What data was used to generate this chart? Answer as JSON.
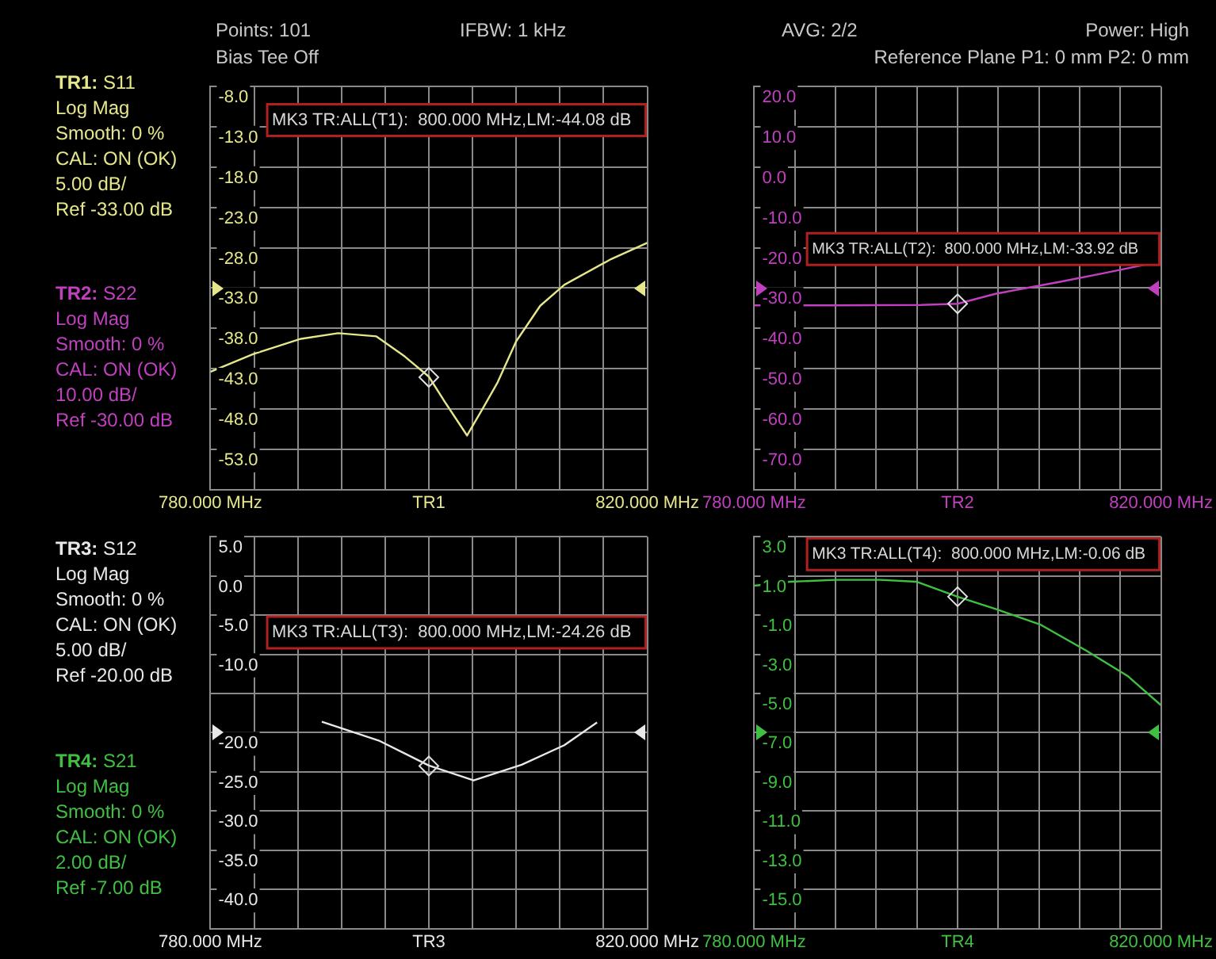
{
  "chart_data": [
    {
      "type": "other",
      "annotations": [
        "Points: 101",
        "IFBW: 1 kHz",
        "AVG: 2/2",
        "Power: High",
        "Bias Tee Off",
        "Reference Plane P1: 0 mm P2: 0 mm"
      ]
    },
    {
      "type": "other",
      "annotations": [
        "TR1: S11",
        "Log Mag",
        "Smooth: 0 %",
        "CAL: ON (OK)",
        "5.00 dB/",
        "Ref -33.00 dB",
        "TR2: S22",
        "Log Mag",
        "Smooth: 0 %",
        "CAL: ON (OK)",
        "10.00 dB/",
        "Ref -30.00 dB"
      ]
    },
    {
      "type": "line",
      "annotations": [
        "MK3 TR:ALL(T1):  800.000 MHz,LM:-44.08 dB"
      ],
      "series": [
        {
          "type": "scatter",
          "color": "#e0e0e0",
          "marker": "diamond",
          "x": [
            800
          ],
          "values": [
            -44.08
          ]
        },
        {
          "color": "#e6e68c",
          "x": [
            780,
            783.9,
            788.3,
            791.7,
            795.2,
            797.8,
            800,
            801.5,
            803.5,
            805,
            806.3,
            808,
            810.2,
            812.4,
            816.7,
            820
          ],
          "values": [
            -43.4,
            -41.2,
            -39.3,
            -38.6,
            -39.0,
            -41.5,
            -44.0,
            -47.2,
            -51.3,
            -47.8,
            -44.7,
            -39.6,
            -35.2,
            -32.6,
            -29.4,
            -27.4
          ]
        }
      ],
      "xlim": [
        780,
        820
      ],
      "xticks": [
        {
          "value": 780,
          "label": "780.000 MHz"
        },
        {
          "value": 784,
          "label": null
        },
        {
          "value": 788,
          "label": null
        },
        {
          "value": 792,
          "label": null
        },
        {
          "value": 796,
          "label": null
        },
        {
          "value": 800,
          "label": "TR1"
        },
        {
          "value": 804,
          "label": null
        },
        {
          "value": 808,
          "label": null
        },
        {
          "value": 812,
          "label": null
        },
        {
          "value": 816,
          "label": null
        },
        {
          "value": 820,
          "label": "820.000 MHz"
        }
      ],
      "ylim": [
        -58,
        -8
      ],
      "yticks": [
        {
          "value": -8,
          "label": "-8.0"
        },
        {
          "value": -13,
          "label": "-13.0"
        },
        {
          "value": -18,
          "label": "-18.0"
        },
        {
          "value": -23,
          "label": "-23.0"
        },
        {
          "value": -28,
          "label": "-28.0"
        },
        {
          "value": -33,
          "label": "-33.0"
        },
        {
          "value": -38,
          "label": "-38.0"
        },
        {
          "value": -43,
          "label": "-43.0"
        },
        {
          "value": -48,
          "label": "-48.0"
        },
        {
          "value": -53,
          "label": "-53.0"
        },
        {
          "value": -58,
          "label": null
        }
      ],
      "grid": true,
      "marker": "none"
    },
    {
      "type": "line",
      "annotations": [
        "MK3 TR:ALL(T2):  800.000 MHz,LM:-33.92 dB"
      ],
      "series": [
        {
          "type": "scatter",
          "color": "#e0e0e0",
          "marker": "diamond",
          "x": [
            800
          ],
          "values": [
            -33.92
          ]
        },
        {
          "color": "#c040c0",
          "x": [
            780,
            788,
            796.4,
            800,
            803.8,
            810,
            814.4,
            820
          ],
          "values": [
            -34.3,
            -34.3,
            -34.2,
            -33.9,
            -31.4,
            -28.5,
            -26.3,
            -23.4
          ]
        }
      ],
      "xlim": [
        780,
        820
      ],
      "xticks": [
        {
          "value": 780,
          "label": "780.000 MHz"
        },
        {
          "value": 784,
          "label": null
        },
        {
          "value": 788,
          "label": null
        },
        {
          "value": 792,
          "label": null
        },
        {
          "value": 796,
          "label": null
        },
        {
          "value": 800,
          "label": "TR2"
        },
        {
          "value": 804,
          "label": null
        },
        {
          "value": 808,
          "label": null
        },
        {
          "value": 812,
          "label": null
        },
        {
          "value": 816,
          "label": null
        },
        {
          "value": 820,
          "label": "820.000 MHz"
        }
      ],
      "ylim": [
        -80,
        20
      ],
      "yticks": [
        {
          "value": 20,
          "label": "20.0"
        },
        {
          "value": 10,
          "label": "10.0"
        },
        {
          "value": 0,
          "label": "0.0"
        },
        {
          "value": -10,
          "label": "-10.0"
        },
        {
          "value": -20,
          "label": "-20.0"
        },
        {
          "value": -30,
          "label": "-30.0"
        },
        {
          "value": -40,
          "label": "-40.0"
        },
        {
          "value": -50,
          "label": "-50.0"
        },
        {
          "value": -60,
          "label": "-60.0"
        },
        {
          "value": -70,
          "label": "-70.0"
        },
        {
          "value": -80,
          "label": null
        }
      ],
      "grid": true,
      "marker": "none"
    },
    {
      "type": "other",
      "annotations": [
        "TR3: S12",
        "Log Mag",
        "Smooth: 0 %",
        "CAL: ON (OK)",
        "5.00 dB/",
        "Ref -20.00 dB",
        "TR4: S21",
        "Log Mag",
        "Smooth: 0 %",
        "CAL: ON (OK)",
        "2.00 dB/",
        "Ref -7.00 dB"
      ]
    },
    {
      "type": "line",
      "annotations": [
        "MK3 TR:ALL(T3):  800.000 MHz,LM:-24.26 dB"
      ],
      "series": [
        {
          "type": "scatter",
          "color": "#e0e0e0",
          "marker": "diamond",
          "x": [
            800
          ],
          "values": [
            -24.26
          ]
        },
        {
          "color": "#e8e8e8",
          "x": [
            790.2,
            795.4,
            800,
            804.1,
            808.5,
            812.4,
            815.4
          ],
          "values": [
            -18.6,
            -21.0,
            -24.2,
            -26.1,
            -24.1,
            -21.6,
            -18.7
          ]
        }
      ],
      "xlim": [
        780,
        820
      ],
      "xticks": [
        {
          "value": 780,
          "label": "780.000 MHz"
        },
        {
          "value": 784,
          "label": null
        },
        {
          "value": 788,
          "label": null
        },
        {
          "value": 792,
          "label": null
        },
        {
          "value": 796,
          "label": null
        },
        {
          "value": 800,
          "label": "TR3"
        },
        {
          "value": 804,
          "label": null
        },
        {
          "value": 808,
          "label": null
        },
        {
          "value": 812,
          "label": null
        },
        {
          "value": 816,
          "label": null
        },
        {
          "value": 820,
          "label": "820.000 MHz"
        }
      ],
      "ylim": [
        -45,
        5
      ],
      "yticks": [
        {
          "value": 5,
          "label": "5.0"
        },
        {
          "value": 0,
          "label": "0.0"
        },
        {
          "value": -5,
          "label": "-5.0"
        },
        {
          "value": -10,
          "label": "-10.0"
        },
        {
          "value": -15,
          "label": null
        },
        {
          "value": -20,
          "label": "-20.0"
        },
        {
          "value": -25,
          "label": "-25.0"
        },
        {
          "value": -30,
          "label": "-30.0"
        },
        {
          "value": -35,
          "label": "-35.0"
        },
        {
          "value": -40,
          "label": "-40.0"
        },
        {
          "value": -45,
          "label": null
        }
      ],
      "grid": true,
      "marker": "none"
    },
    {
      "type": "line",
      "annotations": [
        "MK3 TR:ALL(T4):  800.000 MHz,LM:-0.06 dB"
      ],
      "series": [
        {
          "type": "scatter",
          "color": "#e0e0e0",
          "marker": "diamond",
          "x": [
            800
          ],
          "values": [
            -0.06
          ]
        },
        {
          "color": "#40c040",
          "x": [
            780,
            783.5,
            788,
            792.4,
            796,
            800,
            803.8,
            808.2,
            812.6,
            816.7,
            820
          ],
          "values": [
            0.5,
            0.7,
            0.8,
            0.8,
            0.7,
            -0.06,
            -0.7,
            -1.5,
            -2.8,
            -4.1,
            -5.6
          ]
        }
      ],
      "xlim": [
        780,
        820
      ],
      "xticks": [
        {
          "value": 780,
          "label": "780.000 MHz"
        },
        {
          "value": 784,
          "label": null
        },
        {
          "value": 788,
          "label": null
        },
        {
          "value": 792,
          "label": null
        },
        {
          "value": 796,
          "label": null
        },
        {
          "value": 800,
          "label": "TR4"
        },
        {
          "value": 804,
          "label": null
        },
        {
          "value": 808,
          "label": null
        },
        {
          "value": 812,
          "label": null
        },
        {
          "value": 816,
          "label": null
        },
        {
          "value": 820,
          "label": "820.000 MHz"
        }
      ],
      "ylim": [
        -17,
        3
      ],
      "yticks": [
        {
          "value": 3,
          "label": "3.0"
        },
        {
          "value": 1,
          "label": "1.0"
        },
        {
          "value": -1,
          "label": "-1.0"
        },
        {
          "value": -3,
          "label": "-3.0"
        },
        {
          "value": -5,
          "label": "-5.0"
        },
        {
          "value": -7,
          "label": "-7.0"
        },
        {
          "value": -9,
          "label": "-9.0"
        },
        {
          "value": -11,
          "label": "-11.0"
        },
        {
          "value": -13,
          "label": "-13.0"
        },
        {
          "value": -15,
          "label": "-15.0"
        },
        {
          "value": -17,
          "label": null
        }
      ],
      "grid": true,
      "marker": "none"
    }
  ]
}
